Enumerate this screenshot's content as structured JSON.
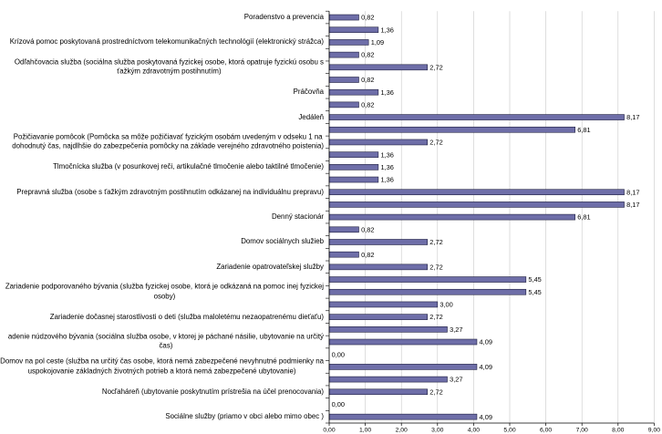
{
  "chart_data": {
    "type": "bar",
    "orientation": "horizontal",
    "categories": [
      "Poradenstvo a prevencia",
      "",
      "Krízová pomoc poskytovaná prostredníctvom telekomunikačných technológií (elektronický strážca)",
      "",
      "Odľahčovacia služba (sociálna služba poskytovaná fyzickej osobe, ktorá opatruje fyzickú osobu s\nťažkým zdravotným postihnutím)",
      "",
      "Práčovňa",
      "",
      "Jedáleň",
      "",
      "Požičiavanie pomôcok (Pomôcka sa môže požičiavať fyzickým osobám uvedeným v odseku 1 na\ndohodnutý čas, najdlhšie do zabezpečenia pomôcky na základe verejného zdravotného poistenia)",
      "",
      "Tlmočnícka služba (v posunkovej reči, artikulačné tlmočenie alebo taktilné tlmočenie)",
      "",
      "Prepravná služba (osobe s ťažkým zdravotným postihnutím odkázanej na individuálnu prepravu)",
      "",
      "Denný stacionár",
      "",
      "Domov sociálnych služieb",
      "",
      "Zariadenie opatrovateľskej služby",
      "",
      "Zariadenie podporovaného bývania (služba fyzickej osobe, ktorá je odkázaná na pomoc inej fyzickej\nosoby)",
      "",
      "Zariadenie dočasnej starostlivosti o deti (služba maloletému nezaopatrenému dieťaťu)",
      "",
      "adenie núdzového bývania (sociálna služba osobe, v ktorej je páchané násilie, ubytovanie na určitý\nčas)",
      "",
      "Domov na pol ceste (služba na určitý čas osobe, ktorá nemá zabezpečené nevyhnutné podmienky na\nuspokojovanie základných životných potrieb a ktorá nemá zabezpečené ubytovanie)",
      "",
      "Nocľaháreň (ubytovanie poskytnutím prístrešia na účel prenocovania)",
      "",
      "Sociálne služby (priamo v obci alebo mimo obec )"
    ],
    "values": [
      0.82,
      1.36,
      1.09,
      0.82,
      2.72,
      0.82,
      1.36,
      0.82,
      8.17,
      6.81,
      2.72,
      1.36,
      1.36,
      1.36,
      8.17,
      8.17,
      6.81,
      0.82,
      2.72,
      0.82,
      2.72,
      5.45,
      5.45,
      3.0,
      2.72,
      3.27,
      4.09,
      0.0,
      4.09,
      3.27,
      2.72,
      0.0,
      4.09
    ],
    "data_labels": [
      "0,82",
      "1,36",
      "1,09",
      "0,82",
      "2,72",
      "0,82",
      "1,36",
      "0,82",
      "8,17",
      "6,81",
      "2,72",
      "1,36",
      "1,36",
      "1,36",
      "8,17",
      "8,17",
      "6,81",
      "0,82",
      "2,72",
      "0,82",
      "2,72",
      "5,45",
      "5,45",
      "3,00",
      "2,72",
      "3,27",
      "4,09",
      "0,00",
      "4,09",
      "3,27",
      "2,72",
      "0,00",
      "4,09"
    ],
    "x_tick_labels": [
      "0,00",
      "1,00",
      "2,00",
      "3,00",
      "4,00",
      "5,00",
      "6,00",
      "7,00",
      "8,00",
      "9,00"
    ],
    "xlim": [
      0,
      9
    ],
    "x_major_unit": 1,
    "grid": true,
    "show_legend": false,
    "colors": {
      "bar_fill": "#6E6EA8",
      "bar_border": "#1F1F3F",
      "gridline": "#C8C8C8",
      "axis": "#000000"
    }
  }
}
